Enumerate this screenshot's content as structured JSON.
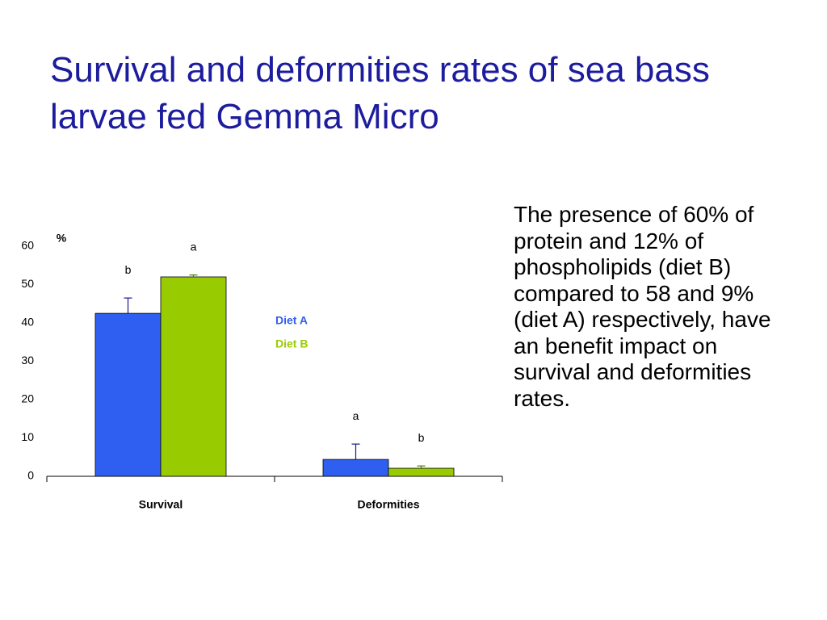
{
  "chart_data": {
    "type": "bar",
    "title": "Survival and deformities rates of sea bass larvae fed Gemma Micro",
    "y_label": "%",
    "categories": [
      "Survival",
      "Deformities"
    ],
    "series": [
      {
        "name": "Diet A",
        "color": "#2f5ff0",
        "values": [
          42.5,
          4.4
        ],
        "errors": [
          4,
          4
        ],
        "letters": [
          "b",
          "a"
        ]
      },
      {
        "name": "Diet B",
        "color": "#99cc00",
        "values": [
          52,
          2.1
        ],
        "errors": [
          0.5,
          0.6
        ],
        "letters": [
          "a",
          "b"
        ]
      }
    ],
    "ylim": [
      0,
      60
    ],
    "yticks": [
      0,
      10,
      20,
      30,
      40,
      50,
      60
    ],
    "grid": false
  },
  "body_text": "The presence of 60% of protein and 12% of phospholipids (diet B) compared to 58 and 9% (diet A) respectively, have an benefit impact on survival and deformities rates."
}
